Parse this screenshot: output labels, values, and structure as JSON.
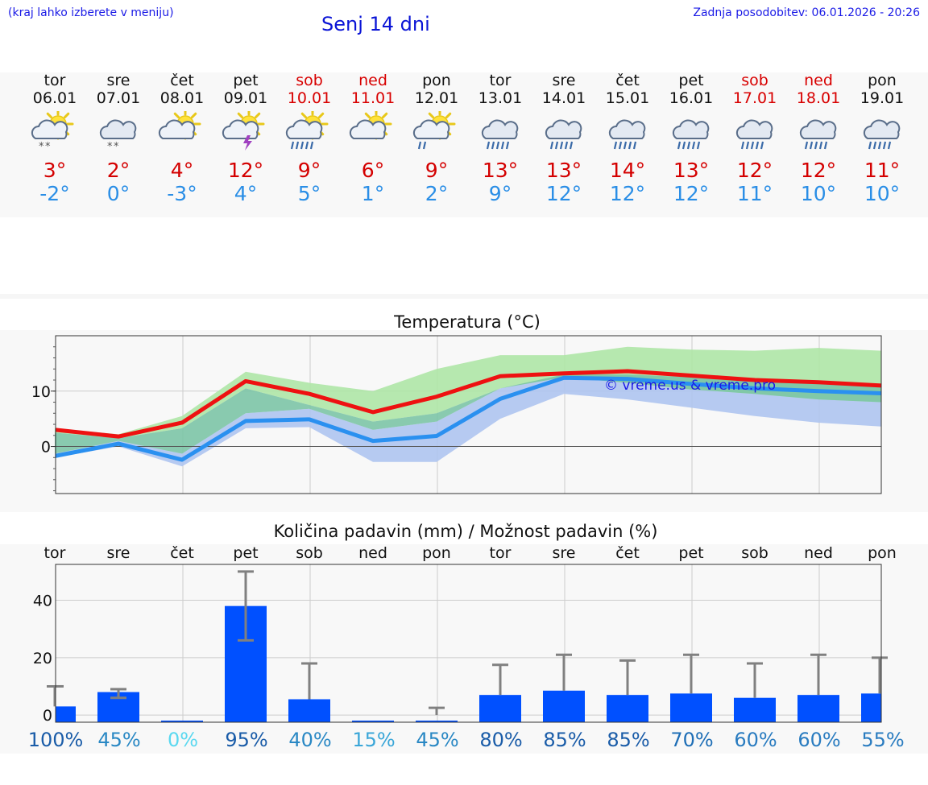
{
  "header": {
    "left_note": "(kraj lahko izberete v meniju)",
    "title": "Senj 14 dni",
    "updated": "Zadnja posodobitev: 06.01.2026 - 20:26"
  },
  "days": [
    {
      "name": "tor",
      "date": "06.01",
      "weekend": false,
      "icon": "sun-cloud-snow-icon",
      "max": "3°",
      "min": "-2°"
    },
    {
      "name": "sre",
      "date": "07.01",
      "weekend": false,
      "icon": "cloud-snow-icon",
      "max": "2°",
      "min": "0°"
    },
    {
      "name": "čet",
      "date": "08.01",
      "weekend": false,
      "icon": "sun-cloud-icon",
      "max": "4°",
      "min": "-3°"
    },
    {
      "name": "pet",
      "date": "09.01",
      "weekend": false,
      "icon": "sun-cloud-thunder-icon",
      "max": "12°",
      "min": "4°"
    },
    {
      "name": "sob",
      "date": "10.01",
      "weekend": true,
      "icon": "sun-cloud-rain-icon",
      "max": "9°",
      "min": "5°"
    },
    {
      "name": "ned",
      "date": "11.01",
      "weekend": true,
      "icon": "sun-cloud-icon",
      "max": "6°",
      "min": "1°"
    },
    {
      "name": "pon",
      "date": "12.01",
      "weekend": false,
      "icon": "sun-cloud-light-rain-icon",
      "max": "9°",
      "min": "2°"
    },
    {
      "name": "tor",
      "date": "13.01",
      "weekend": false,
      "icon": "cloud-rain-icon",
      "max": "13°",
      "min": "9°"
    },
    {
      "name": "sre",
      "date": "14.01",
      "weekend": false,
      "icon": "cloud-rain-icon",
      "max": "13°",
      "min": "12°"
    },
    {
      "name": "čet",
      "date": "15.01",
      "weekend": false,
      "icon": "cloud-rain-icon",
      "max": "14°",
      "min": "12°"
    },
    {
      "name": "pet",
      "date": "16.01",
      "weekend": false,
      "icon": "cloud-rain-icon",
      "max": "13°",
      "min": "12°"
    },
    {
      "name": "sob",
      "date": "17.01",
      "weekend": true,
      "icon": "cloud-rain-icon",
      "max": "12°",
      "min": "11°"
    },
    {
      "name": "ned",
      "date": "18.01",
      "weekend": true,
      "icon": "cloud-rain-icon",
      "max": "12°",
      "min": "10°"
    },
    {
      "name": "pon",
      "date": "19.01",
      "weekend": false,
      "icon": "cloud-rain-icon",
      "max": "11°",
      "min": "10°"
    }
  ],
  "colors": {
    "max_line": "#ee1111",
    "min_line": "#2a90f0",
    "max_band": "#aee6a6",
    "overlap_band": "#7cc4a6",
    "min_band": "#aec4f0",
    "bar": "#0050ff",
    "whisker": "#808080",
    "grid": "#cccccc"
  },
  "chart_data": [
    {
      "type": "line",
      "title": "Temperatura (°C)",
      "watermark": "© vreme.us & vreme.pro",
      "x": [
        0,
        1,
        2,
        3,
        4,
        5,
        6,
        7,
        8,
        9,
        10,
        11,
        12,
        13
      ],
      "ylim": [
        -8.5,
        20
      ],
      "yticks": [
        0,
        10
      ],
      "series": [
        {
          "name": "max",
          "values": [
            3,
            1.8,
            4.3,
            11.8,
            9.5,
            6.2,
            9,
            12.7,
            13.2,
            13.6,
            12.8,
            12,
            11.6,
            11
          ]
        },
        {
          "name": "min",
          "values": [
            -1.7,
            0.5,
            -2.4,
            4.6,
            4.9,
            1,
            1.9,
            8.6,
            12.4,
            12.2,
            11.3,
            10.5,
            10,
            9.6
          ]
        }
      ],
      "max_band": {
        "low": [
          2.5,
          1.5,
          3.3,
          10.5,
          7.5,
          4.5,
          6,
          10.5,
          12.5,
          11.5,
          10.3,
          9.5,
          8.5,
          8
        ],
        "high": [
          3.3,
          2.2,
          5.5,
          13.5,
          11.5,
          10,
          14,
          16.5,
          16.5,
          18,
          17.5,
          17.3,
          17.8,
          17.3
        ]
      },
      "min_band": {
        "low": [
          -2,
          0,
          -3.6,
          3.3,
          3.5,
          -2.8,
          -2.8,
          5,
          9.5,
          8.5,
          7,
          5.5,
          4.3,
          3.6
        ],
        "high": [
          -1.3,
          1,
          -1.3,
          6,
          6.8,
          3,
          4.5,
          10.5,
          13,
          13,
          12.5,
          11.8,
          11.5,
          11
        ]
      }
    },
    {
      "type": "bar",
      "title": "Količina padavin (mm) / Možnost padavin (%)",
      "categories": [
        "tor",
        "sre",
        "čet",
        "pet",
        "sob",
        "ned",
        "pon",
        "tor",
        "sre",
        "čet",
        "pet",
        "sob",
        "ned",
        "pon"
      ],
      "values": [
        3,
        8,
        0,
        38,
        5.5,
        0,
        0,
        7,
        8.5,
        7,
        7.5,
        6,
        7,
        7.5
      ],
      "error_low": [
        3,
        6,
        0,
        26,
        5.5,
        0,
        0,
        7,
        8.5,
        7,
        7.5,
        6,
        7,
        7.5
      ],
      "error_high": [
        10,
        9,
        0,
        50,
        18,
        0,
        2.5,
        17.5,
        21,
        19,
        21,
        18,
        21,
        20
      ],
      "probability": [
        "100%",
        "45%",
        "0%",
        "95%",
        "40%",
        "15%",
        "45%",
        "80%",
        "85%",
        "85%",
        "70%",
        "60%",
        "60%",
        "55%"
      ],
      "probability_colors": [
        "#1a5ca8",
        "#2a88c4",
        "#5ad8f0",
        "#1a5ca8",
        "#2a88c4",
        "#3aa6d8",
        "#2a88c4",
        "#1a5ca8",
        "#1a5ca8",
        "#1a5ca8",
        "#1e6eb6",
        "#2a7cc0",
        "#2a7cc0",
        "#2a7cc0"
      ],
      "ylim": [
        -2.5,
        52.5
      ],
      "yticks": [
        0,
        20,
        40
      ]
    }
  ]
}
